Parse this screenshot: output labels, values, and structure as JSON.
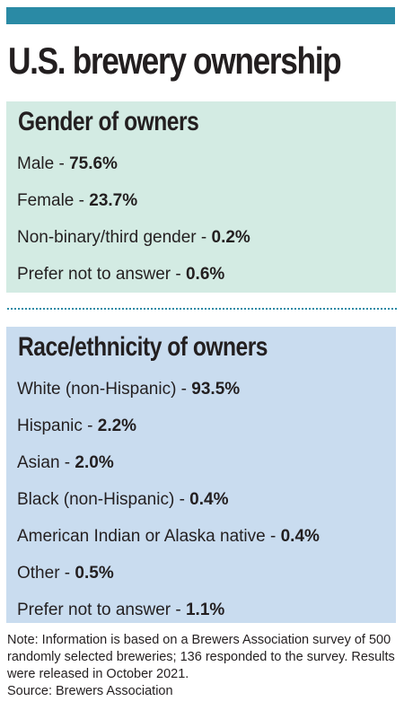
{
  "title": "U.S. brewery ownership",
  "colors": {
    "top_bar": "#2a8aa5",
    "gender_panel": "#d3ebe3",
    "race_panel": "#c9dcef",
    "divider": "#2a8aa5",
    "text": "#231f20"
  },
  "gender": {
    "heading": "Gender of owners",
    "items": [
      {
        "label": "Male - ",
        "value": "75.6%"
      },
      {
        "label": "Female - ",
        "value": "23.7%"
      },
      {
        "label": "Non-binary/third gender - ",
        "value": "0.2%"
      },
      {
        "label": "Prefer not to answer - ",
        "value": "0.6%"
      }
    ]
  },
  "race": {
    "heading": "Race/ethnicity of owners",
    "items": [
      {
        "label": "White (non-Hispanic) - ",
        "value": "93.5%"
      },
      {
        "label": "Hispanic - ",
        "value": "2.2%"
      },
      {
        "label": "Asian - ",
        "value": "2.0%"
      },
      {
        "label": "Black (non-Hispanic) - ",
        "value": "0.4%"
      },
      {
        "label": "American Indian or Alaska native - ",
        "value": "0.4%"
      },
      {
        "label": "Other - ",
        "value": "0.5%"
      },
      {
        "label": "Prefer not to answer - ",
        "value": "1.1%"
      }
    ]
  },
  "note": {
    "text": "Note: Information is based on a Brewers Association survey of 500 randomly selected breweries; 136 responded to the survey. Results were released in October 2021.",
    "source": "Source: Brewers Association"
  }
}
